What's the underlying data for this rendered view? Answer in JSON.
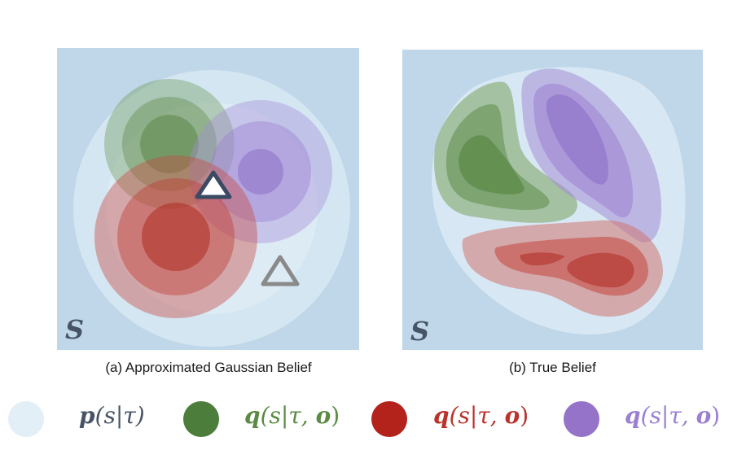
{
  "panels": {
    "a": {
      "caption": "(a) Approximated Gaussian Belief",
      "set_label": "S"
    },
    "b": {
      "caption": "(b) True Belief",
      "set_label": "S"
    }
  },
  "legend": [
    {
      "color": "#e3eff6",
      "text_prefix": "p",
      "text_body": "(s|τ)",
      "text_color": "#465465"
    },
    {
      "color": "#4d7d3a",
      "text_prefix": "q",
      "text_body": "(s|τ, ",
      "text_obs": "o",
      "text_tail": ")",
      "text_color": "#5a8a44"
    },
    {
      "color": "#b3231b",
      "text_prefix": "q",
      "text_body": "(s|τ, ",
      "text_obs": "o",
      "text_tail": ")",
      "text_color": "#b9332a"
    },
    {
      "color": "#9473c9",
      "text_prefix": "q",
      "text_body": "(s|τ, ",
      "text_obs": "o",
      "text_tail": ")",
      "text_color": "#9b7fd0"
    }
  ],
  "colors": {
    "background_panel": "#bfd7e9",
    "prior": "#e3eff6",
    "green": "#4d7d3a",
    "red": "#b3231b",
    "purple": "#9473c9",
    "triangle_dark": "#3b4a63",
    "triangle_gray": "#8a8a8a"
  }
}
